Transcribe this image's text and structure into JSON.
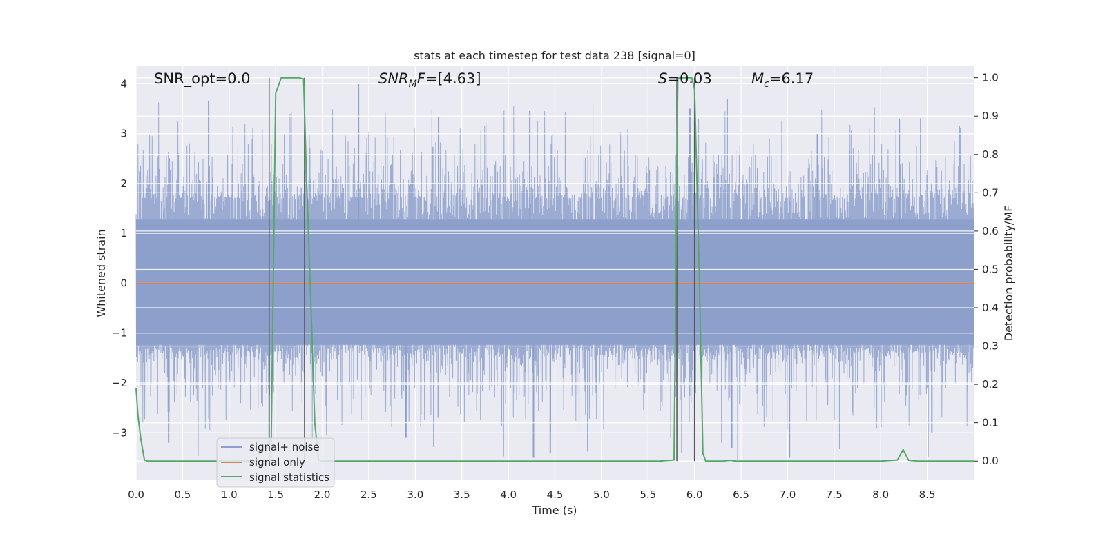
{
  "chart_data": {
    "type": "line",
    "title": "stats at each timestep for test data 238 [signal=0]",
    "xlabel": "Time (s)",
    "ylabel": "Whitened strain",
    "y2label": "Detection probability/MF",
    "xlim": [
      0,
      9.0
    ],
    "ylim": [
      -3.95,
      4.35
    ],
    "y2lim": [
      -0.05,
      1.03
    ],
    "x_ticks": [
      0.0,
      0.5,
      1.0,
      1.5,
      2.0,
      2.5,
      3.0,
      3.5,
      4.0,
      4.5,
      5.0,
      5.5,
      6.0,
      6.5,
      7.0,
      7.5,
      8.0,
      8.5
    ],
    "x_tick_labels": [
      "0.0",
      "0.5",
      "1.0",
      "1.5",
      "2.0",
      "2.5",
      "3.0",
      "3.5",
      "4.0",
      "4.5",
      "5.0",
      "5.5",
      "6.0",
      "6.5",
      "7.0",
      "7.5",
      "8.0",
      "8.5"
    ],
    "y_ticks": [
      4,
      3,
      2,
      1,
      0,
      -1,
      -2,
      -3
    ],
    "y_tick_labels": [
      "4",
      "3",
      "2",
      "1",
      "0",
      "−1",
      "−2",
      "−3"
    ],
    "y2_ticks": [
      1.0,
      0.9,
      0.8,
      0.7,
      0.6,
      0.5,
      0.4,
      0.3,
      0.2,
      0.1,
      0.0
    ],
    "y2_tick_labels": [
      "1.0",
      "0.9",
      "0.8",
      "0.7",
      "0.6",
      "0.5",
      "0.4",
      "0.3",
      "0.2",
      "0.1",
      "0.0"
    ],
    "grid": true,
    "legend_position": "lower-left",
    "annotations": {
      "snr_opt": "SNR_opt=0.0",
      "snr_mf_italic": "SNR",
      "snr_mf_sub": "M",
      "snr_mf_rest_italic": "F",
      "snr_mf_value": "=[4.63]",
      "s_italic": "S",
      "s_value": "=0.03",
      "mc_italic": "M",
      "mc_sub": "c",
      "mc_value": "=6.17"
    },
    "vertical_lines_x": [
      1.43,
      1.81,
      5.81,
      6.0
    ],
    "series": [
      {
        "name": "signal+ noise",
        "axis": "left",
        "color": "#8da0cb",
        "kind": "noise",
        "band_low": -1.3,
        "band_high": 1.7,
        "peak_high": 3.8,
        "peak_low": -3.6,
        "peaks": [
          [
            0.78,
            3.65
          ],
          [
            0.35,
            -3.2
          ],
          [
            2.39,
            4.0
          ],
          [
            3.25,
            3.35
          ],
          [
            4.23,
            3.45
          ],
          [
            4.27,
            -3.5
          ],
          [
            4.45,
            -3.4
          ],
          [
            5.95,
            3.5
          ],
          [
            6.35,
            3.7
          ],
          [
            6.4,
            -3.3
          ],
          [
            7.02,
            -3.5
          ],
          [
            7.32,
            3.0
          ],
          [
            8.2,
            3.3
          ],
          [
            8.55,
            -3.0
          ],
          [
            1.43,
            -3.2
          ],
          [
            2.9,
            -3.1
          ]
        ]
      },
      {
        "name": "signal only",
        "axis": "left",
        "color": "#dd8452",
        "x": [
          0.0,
          9.0
        ],
        "y": [
          0.0,
          0.0
        ]
      },
      {
        "name": "signal statistics",
        "axis": "right",
        "color": "#55a868",
        "x": [
          0.0,
          0.02,
          0.05,
          0.09,
          0.12,
          0.25,
          0.5,
          1.0,
          1.25,
          1.4,
          1.45,
          1.5,
          1.56,
          1.62,
          1.7,
          1.75,
          1.8,
          1.83,
          1.88,
          1.92,
          1.96,
          2.0,
          2.5,
          3.0,
          4.0,
          5.0,
          5.5,
          5.62,
          5.78,
          5.82,
          5.87,
          5.92,
          5.97,
          6.0,
          6.05,
          6.09,
          6.12,
          6.2,
          6.3,
          6.38,
          6.45,
          7.0,
          7.5,
          8.0,
          8.18,
          8.24,
          8.3,
          8.4,
          8.5,
          8.8,
          9.0
        ],
        "y": [
          0.19,
          0.12,
          0.06,
          0.003,
          0.0,
          0.0,
          0.0,
          0.0,
          0.0,
          0.0,
          0.003,
          0.96,
          1.0,
          1.0,
          1.0,
          1.0,
          0.997,
          0.75,
          0.4,
          0.1,
          0.003,
          0.0,
          0.0,
          0.0,
          0.0,
          0.0,
          0.0,
          0.0,
          0.003,
          0.999,
          1.0,
          1.0,
          1.0,
          0.97,
          0.5,
          0.02,
          0.0,
          0.0,
          0.0,
          0.002,
          0.0,
          0.0,
          0.0,
          0.0,
          0.003,
          0.03,
          0.002,
          0.0,
          0.0,
          0.0,
          0.0
        ]
      }
    ]
  }
}
